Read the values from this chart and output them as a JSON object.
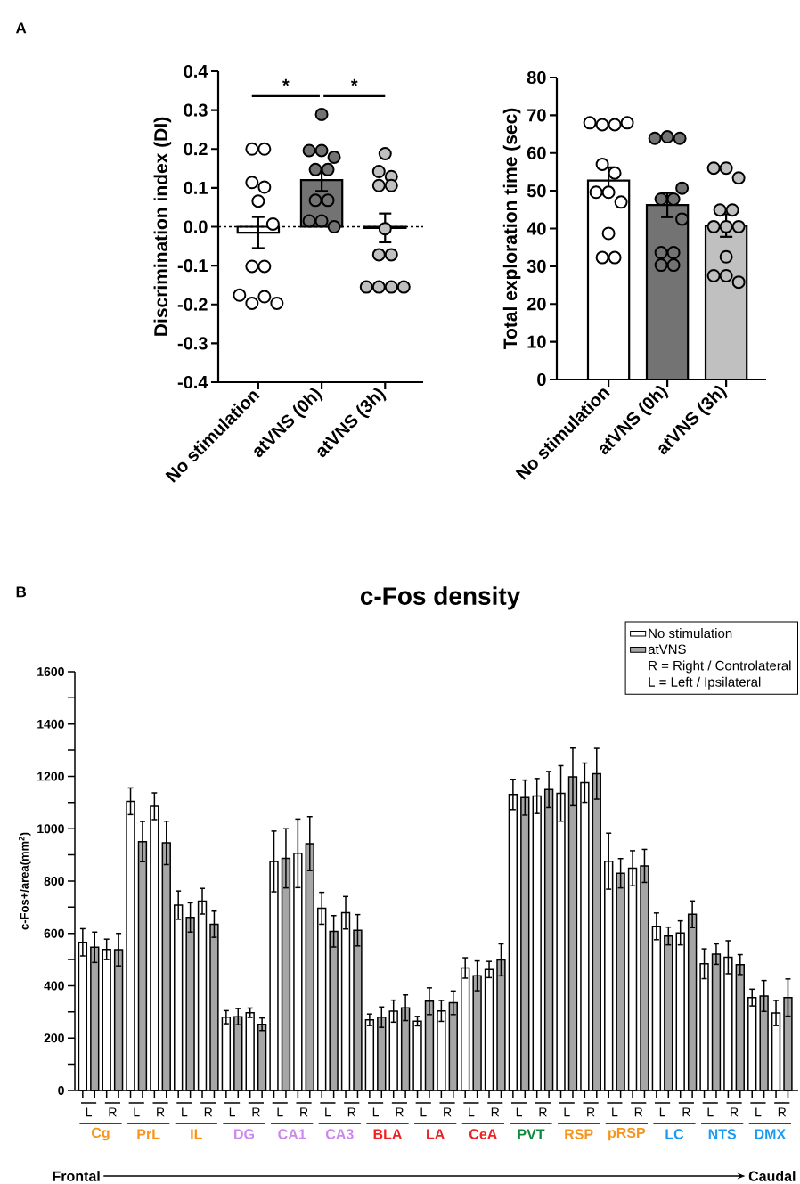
{
  "chart_data": [
    {
      "type": "bar",
      "categories": [
        "No stimulation",
        "atVNS (0h)",
        "atVNS (3h)"
      ],
      "ylabel": "Discrimination index (DI)",
      "ylim": [
        -0.4,
        0.4
      ],
      "yticks": [
        -0.4,
        -0.3,
        -0.2,
        -0.1,
        {
          "value": 0,
          "label": "0.0"
        },
        0.1,
        0.2,
        0.3,
        0.4
      ],
      "marker": "circle",
      "series": [
        {
          "type": "bar",
          "values": [
            -0.015,
            0.12,
            -0.003
          ],
          "colors": [
            "#ffffff",
            "#737373",
            "#c0c0c0"
          ],
          "errors": [
            0.04,
            0.028,
            0.037
          ]
        },
        {
          "type": "scatter",
          "color": "#ffffff",
          "x": [
            "No stimulation",
            "No stimulation",
            "No stimulation",
            "No stimulation",
            "No stimulation",
            "No stimulation",
            "No stimulation",
            "No stimulation",
            "No stimulation",
            "No stimulation",
            "No stimulation",
            "No stimulation"
          ],
          "values": [
            0.2,
            0.2,
            0.114,
            0.102,
            0.066,
            0.007,
            -0.102,
            -0.102,
            -0.176,
            -0.197,
            -0.18,
            -0.197
          ]
        },
        {
          "type": "scatter",
          "color": "#737373",
          "x": [
            "atVNS (0h)",
            "atVNS (0h)",
            "atVNS (0h)",
            "atVNS (0h)",
            "atVNS (0h)",
            "atVNS (0h)",
            "atVNS (0h)",
            "atVNS (0h)",
            "atVNS (0h)",
            "atVNS (0h)",
            "atVNS (0h)"
          ],
          "values": [
            0.289,
            0.196,
            0.196,
            0.179,
            0.147,
            0.147,
            0.068,
            0.068,
            0.015,
            0.015,
            0.0
          ]
        },
        {
          "type": "scatter",
          "color": "#c0c0c0",
          "x": [
            "atVNS (3h)",
            "atVNS (3h)",
            "atVNS (3h)",
            "atVNS (3h)",
            "atVNS (3h)",
            "atVNS (3h)",
            "atVNS (3h)",
            "atVNS (3h)",
            "atVNS (3h)",
            "atVNS (3h)",
            "atVNS (3h)",
            "atVNS (3h)"
          ],
          "values": [
            0.188,
            0.142,
            0.129,
            0.106,
            0.106,
            -0.005,
            -0.072,
            -0.072,
            -0.155,
            -0.155,
            -0.155,
            -0.155
          ]
        }
      ],
      "ref_lines": [
        {
          "axis": "y",
          "value": 0,
          "line_style": "dashed"
        }
      ],
      "annotations": [
        "A",
        "*",
        "*"
      ]
    },
    {
      "type": "bar",
      "categories": [
        "No stimulation",
        "atVNS (0h)",
        "atVNS (3h)"
      ],
      "ylabel": "Total exploration time (sec)",
      "ylim": [
        0,
        80
      ],
      "yticks": [
        0,
        10,
        20,
        30,
        40,
        50,
        60,
        70,
        80
      ],
      "marker": "circle",
      "series": [
        {
          "type": "bar",
          "values": [
            52.7,
            46.2,
            40.8
          ],
          "colors": [
            "#ffffff",
            "#737373",
            "#c0c0c0"
          ],
          "errors": [
            3.5,
            3.2,
            3.0
          ]
        },
        {
          "type": "scatter",
          "color": "#ffffff",
          "x": [
            "No stimulation",
            "No stimulation",
            "No stimulation",
            "No stimulation",
            "No stimulation",
            "No stimulation",
            "No stimulation",
            "No stimulation",
            "No stimulation",
            "No stimulation",
            "No stimulation",
            "No stimulation"
          ],
          "values": [
            68,
            67.5,
            67.5,
            68,
            57,
            54.7,
            49.6,
            49.6,
            47,
            38.7,
            32.3,
            32.3
          ]
        },
        {
          "type": "scatter",
          "color": "#737373",
          "x": [
            "atVNS (0h)",
            "atVNS (0h)",
            "atVNS (0h)",
            "atVNS (0h)",
            "atVNS (0h)",
            "atVNS (0h)",
            "atVNS (0h)",
            "atVNS (0h)",
            "atVNS (0h)",
            "atVNS (0h)",
            "atVNS (0h)"
          ],
          "values": [
            63.9,
            64.3,
            63.9,
            50.7,
            47.8,
            47.8,
            42.5,
            33.6,
            33.6,
            30.3,
            30.3
          ]
        },
        {
          "type": "scatter",
          "color": "#c0c0c0",
          "x": [
            "atVNS (3h)",
            "atVNS (3h)",
            "atVNS (3h)",
            "atVNS (3h)",
            "atVNS (3h)",
            "atVNS (3h)",
            "atVNS (3h)",
            "atVNS (3h)",
            "atVNS (3h)",
            "atVNS (3h)",
            "atVNS (3h)",
            "atVNS (3h)"
          ],
          "values": [
            56,
            56,
            53.4,
            44.9,
            44.9,
            40.5,
            40.5,
            40.5,
            32.5,
            27.5,
            27.5,
            25.8
          ]
        }
      ]
    },
    {
      "type": "bar",
      "title": "c-Fos density",
      "ylabel": "c-Fos+/area(mm$^{2}$)",
      "categories": [
        "L",
        "R",
        "L",
        "R",
        "L",
        "R",
        "L",
        "R",
        "L",
        "R",
        "L",
        "R",
        "L",
        "R",
        "L",
        "R",
        "L",
        "R",
        "L",
        "R",
        "L",
        "R",
        "L",
        "R",
        "L",
        "R",
        "L",
        "R",
        "L",
        "R"
      ],
      "ylim": [
        0,
        1600
      ],
      "yticks": [
        0,
        {
          "value": 100,
          "label": null
        },
        200,
        {
          "value": 300,
          "label": null
        },
        400,
        {
          "value": 500,
          "label": null
        },
        600,
        {
          "value": 700,
          "label": null
        },
        800,
        {
          "value": 900,
          "label": null
        },
        1000,
        {
          "value": 1100,
          "label": null
        },
        1200,
        {
          "value": 1300,
          "label": null
        },
        1400,
        {
          "value": 1500,
          "label": null
        },
        1600
      ],
      "legend": "top right",
      "series": [
        {
          "name": "No stimulation",
          "color": "#ffffff",
          "values": [
            566,
            539,
            1105,
            1086,
            708,
            723,
            280,
            297,
            875,
            906,
            696,
            679,
            270,
            303,
            265,
            304,
            468,
            462,
            1131,
            1125,
            1135,
            1176,
            876,
            849,
            627,
            602,
            484,
            509,
            355,
            296
          ],
          "errors": [
            52,
            39,
            51,
            51,
            54,
            49,
            25,
            18,
            116,
            131,
            61,
            62,
            22,
            42,
            18,
            40,
            39,
            31,
            58,
            67,
            106,
            75,
            107,
            67,
            51,
            46,
            57,
            63,
            32,
            48
          ]
        },
        {
          "name": "atVNS",
          "color": "#a6a6a6",
          "values": [
            547,
            538,
            951,
            946,
            661,
            635,
            282,
            253,
            887,
            943,
            608,
            612,
            280,
            316,
            341,
            335,
            438,
            499,
            1119,
            1150,
            1198,
            1210,
            830,
            858,
            590,
            673,
            521,
            481,
            361,
            355
          ],
          "errors": [
            58,
            62,
            77,
            83,
            56,
            50,
            31,
            24,
            113,
            103,
            60,
            60,
            39,
            49,
            51,
            45,
            57,
            61,
            67,
            69,
            110,
            97,
            56,
            63,
            34,
            51,
            39,
            38,
            59,
            71
          ]
        }
      ],
      "annotations": [
        "B",
        "R = Right / Controlateral",
        "L = Left / Ipsilateral",
        "Cg",
        "PrL",
        "IL",
        "DG",
        "CA1",
        "CA3",
        "BLA",
        "LA",
        "CeA",
        "PVT",
        "RSP",
        "pRSP",
        "LC",
        "NTS",
        "DMX",
        "Frontal",
        "Caudal"
      ]
    }
  ]
}
